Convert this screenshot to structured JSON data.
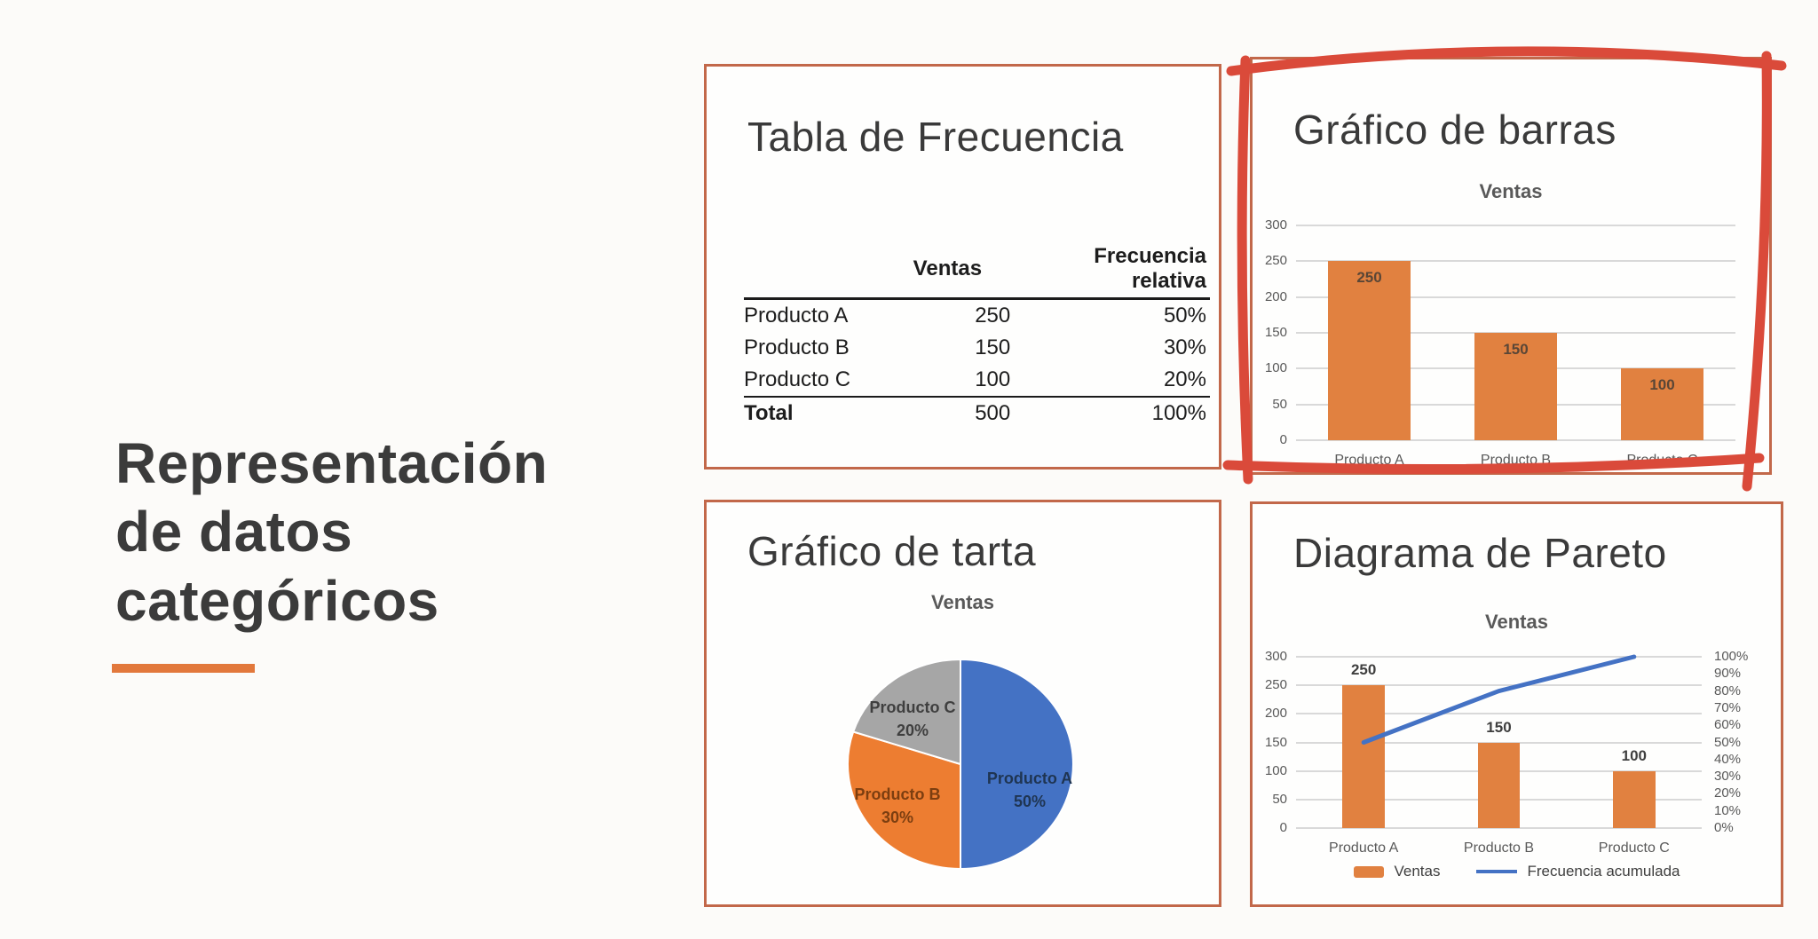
{
  "slide": {
    "title_lines": [
      "Representación",
      "de datos",
      "categóricos"
    ]
  },
  "colors": {
    "accent_orange": "#e2783c",
    "bar_orange": "#e18140",
    "panel_border": "#c2684a",
    "marker_red": "#da4a3a",
    "line_blue": "#4472c4",
    "gridline": "#d9d9d9",
    "tick_gray": "#595959",
    "bar_label_inside": "#5a4636",
    "bar_label_above": "#3f3f3f",
    "text_dark": "#3b3b3b"
  },
  "panels": {
    "frequency_table": {
      "title": "Tabla de Frecuencia",
      "col_headers": [
        "Ventas",
        "Frecuencia relativa"
      ],
      "rows": [
        {
          "label": "Producto A",
          "ventas": "250",
          "fr": "50%"
        },
        {
          "label": "Producto B",
          "ventas": "150",
          "fr": "30%"
        },
        {
          "label": "Producto C",
          "ventas": "100",
          "fr": "20%"
        }
      ],
      "total_row": {
        "label": "Total",
        "ventas": "500",
        "fr": "100%"
      }
    },
    "bar_chart": {
      "title": "Gráfico de barras",
      "highlighted": true
    },
    "pie_chart": {
      "title": "Gráfico de tarta"
    },
    "pareto": {
      "title": "Diagrama de Pareto"
    }
  },
  "chart_data": [
    {
      "type": "bar",
      "title": "Ventas",
      "categories": [
        "Producto A",
        "Producto B",
        "Producto C"
      ],
      "values": [
        250,
        150,
        100
      ],
      "ylim": [
        0,
        300
      ],
      "yticks": [
        0,
        50,
        100,
        150,
        200,
        250,
        300
      ],
      "data_label_position": "inside-end",
      "bar_color": "#e18140",
      "grid": true
    },
    {
      "type": "pie",
      "title": "Ventas",
      "labels": [
        "Producto A",
        "Producto B",
        "Producto C"
      ],
      "values_pct": [
        50,
        30,
        20
      ],
      "slice_colors": [
        "#4472c4",
        "#ed7d31",
        "#a6a6a6"
      ],
      "label_colors": [
        "#1f3552",
        "#7c3e10",
        "#3f3f3f"
      ],
      "start_angle_deg": 0,
      "direction": "clockwise"
    },
    {
      "type": "pareto",
      "title": "Ventas",
      "categories": [
        "Producto A",
        "Producto B",
        "Producto C"
      ],
      "series": [
        {
          "name": "Ventas",
          "kind": "bar",
          "values": [
            250,
            150,
            100
          ]
        },
        {
          "name": "Frecuencia acumulada",
          "kind": "line",
          "values_pct": [
            50,
            80,
            100
          ]
        }
      ],
      "ylim_left": [
        0,
        300
      ],
      "yticks_left": [
        0,
        50,
        100,
        150,
        200,
        250,
        300
      ],
      "yticks_right": [
        "0%",
        "10%",
        "20%",
        "30%",
        "40%",
        "50%",
        "60%",
        "70%",
        "80%",
        "90%",
        "100%"
      ],
      "legend": [
        "Ventas",
        "Frecuencia acumulada"
      ],
      "data_label_position": "outside-end",
      "bar_color": "#e18140",
      "line_color": "#4472c4",
      "grid": true
    }
  ]
}
